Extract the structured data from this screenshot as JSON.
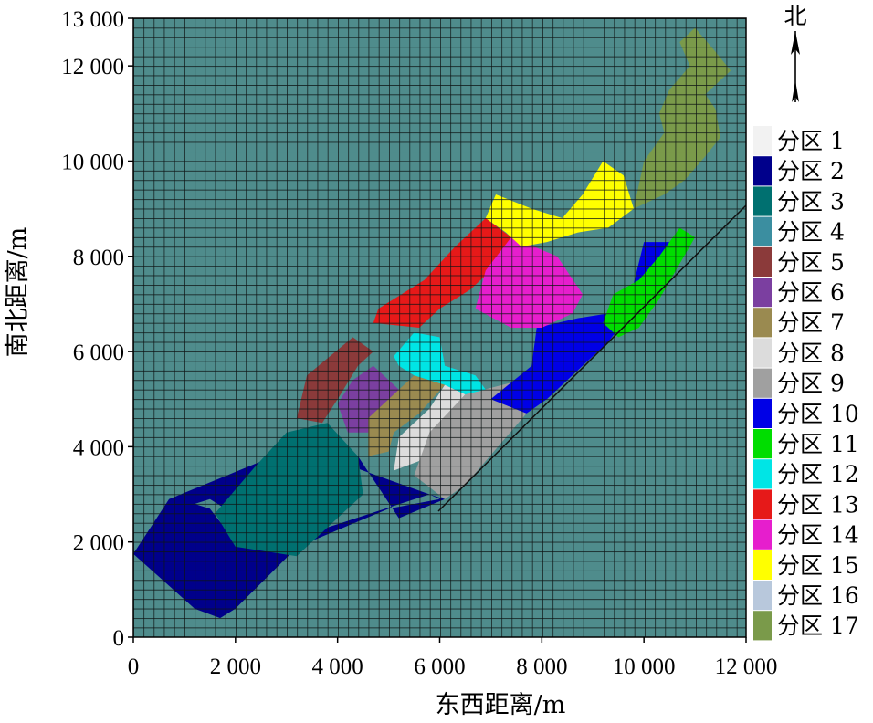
{
  "chart_data": {
    "type": "heatmap",
    "title": "",
    "xlabel": "东西距离/m",
    "ylabel": "南北距离/m",
    "xlim": [
      0,
      12000
    ],
    "ylim": [
      0,
      13000
    ],
    "x_ticks": [
      0,
      2000,
      4000,
      6000,
      8000,
      10000,
      12000
    ],
    "x_tick_labels": [
      "0",
      "2 000",
      "4 000",
      "6 000",
      "8 000",
      "10 000",
      "12 000"
    ],
    "y_ticks": [
      0,
      2000,
      4000,
      6000,
      8000,
      10000,
      12000,
      13000
    ],
    "y_tick_labels": [
      "0",
      "2 000",
      "4 000",
      "6 000",
      "8 000",
      "10 000",
      "12 000",
      "13 000"
    ],
    "north_label": "北",
    "background_color": "#4f8c8c",
    "grid": true,
    "legend_position": "right",
    "zones": [
      {
        "name": "分区 1",
        "color": "#f2f2f2",
        "polygon": []
      },
      {
        "name": "分区 2",
        "color": "#00008b",
        "polygon": [
          [
            0,
            1750
          ],
          [
            700,
            2900
          ],
          [
            3200,
            4000
          ],
          [
            5800,
            3000
          ],
          [
            6100,
            2900
          ],
          [
            5200,
            2500
          ],
          [
            4400,
            3800
          ],
          [
            3100,
            3700
          ],
          [
            2400,
            2300
          ],
          [
            1500,
            2900
          ],
          [
            1200,
            2800
          ],
          [
            1500,
            2700
          ],
          [
            2000,
            2000
          ],
          [
            3000,
            1800
          ],
          [
            5000,
            2700
          ],
          [
            6000,
            2900
          ],
          [
            5800,
            3000
          ],
          [
            3500,
            2200
          ],
          [
            2000,
            600
          ],
          [
            1700,
            400
          ],
          [
            1200,
            600
          ]
        ]
      },
      {
        "name": "分区 3",
        "color": "#007070",
        "polygon": [
          [
            1600,
            2600
          ],
          [
            2000,
            1900
          ],
          [
            3200,
            1700
          ],
          [
            4500,
            3000
          ],
          [
            4400,
            3800
          ],
          [
            3800,
            4500
          ],
          [
            3000,
            4300
          ],
          [
            2400,
            3600
          ]
        ]
      },
      {
        "name": "分区 4",
        "color": "#3b8ea0",
        "polygon": []
      },
      {
        "name": "分区 5",
        "color": "#8b3a3a",
        "polygon": [
          [
            3200,
            4600
          ],
          [
            3400,
            5500
          ],
          [
            4300,
            6300
          ],
          [
            4700,
            6000
          ],
          [
            4400,
            5700
          ],
          [
            4000,
            5000
          ],
          [
            3700,
            4500
          ]
        ]
      },
      {
        "name": "分区 6",
        "color": "#7b3fa0",
        "polygon": [
          [
            4200,
            4300
          ],
          [
            4000,
            4900
          ],
          [
            4300,
            5400
          ],
          [
            4700,
            5700
          ],
          [
            5200,
            5200
          ],
          [
            5000,
            4600
          ],
          [
            4600,
            4300
          ]
        ]
      },
      {
        "name": "分区 7",
        "color": "#9a8a50",
        "polygon": [
          [
            4600,
            3800
          ],
          [
            4600,
            4600
          ],
          [
            5000,
            5000
          ],
          [
            5500,
            5500
          ],
          [
            6100,
            5300
          ],
          [
            5600,
            4700
          ],
          [
            5100,
            4300
          ],
          [
            5000,
            3900
          ]
        ]
      },
      {
        "name": "分区 8",
        "color": "#dcdcdc",
        "polygon": [
          [
            5100,
            3500
          ],
          [
            5200,
            4200
          ],
          [
            5800,
            4800
          ],
          [
            6100,
            5300
          ],
          [
            6500,
            5100
          ],
          [
            6000,
            4400
          ],
          [
            5600,
            3700
          ]
        ]
      },
      {
        "name": "分区 9",
        "color": "#a0a0a0",
        "polygon": [
          [
            5500,
            3400
          ],
          [
            5800,
            4300
          ],
          [
            6500,
            5100
          ],
          [
            7600,
            5400
          ],
          [
            8100,
            5000
          ],
          [
            7700,
            4700
          ],
          [
            6500,
            3200
          ],
          [
            6100,
            2900
          ]
        ]
      },
      {
        "name": "分区 10",
        "color": "#0000e6",
        "polygon": [
          [
            7000,
            5000
          ],
          [
            7800,
            5700
          ],
          [
            7900,
            6500
          ],
          [
            8700,
            6700
          ],
          [
            9300,
            6800
          ],
          [
            9700,
            7000
          ],
          [
            10000,
            8300
          ],
          [
            10500,
            8300
          ],
          [
            10100,
            7600
          ],
          [
            9800,
            6900
          ],
          [
            9300,
            6200
          ],
          [
            8100,
            5000
          ],
          [
            7700,
            4700
          ]
        ]
      },
      {
        "name": "分区 11",
        "color": "#00dd00",
        "polygon": [
          [
            9200,
            6600
          ],
          [
            9400,
            7200
          ],
          [
            9900,
            7500
          ],
          [
            10300,
            8000
          ],
          [
            10700,
            8600
          ],
          [
            11000,
            8400
          ],
          [
            10300,
            7100
          ],
          [
            9900,
            6500
          ],
          [
            9500,
            6300
          ]
        ]
      },
      {
        "name": "分区 12",
        "color": "#00e5e5",
        "polygon": [
          [
            5100,
            5900
          ],
          [
            5500,
            6400
          ],
          [
            6000,
            6300
          ],
          [
            6100,
            5700
          ],
          [
            6700,
            5500
          ],
          [
            6900,
            5200
          ],
          [
            6500,
            5100
          ],
          [
            6100,
            5300
          ],
          [
            5500,
            5500
          ],
          [
            5200,
            5700
          ]
        ]
      },
      {
        "name": "分区 13",
        "color": "#e61919",
        "polygon": [
          [
            4700,
            6600
          ],
          [
            4800,
            6900
          ],
          [
            5700,
            7500
          ],
          [
            6300,
            8200
          ],
          [
            6900,
            8800
          ],
          [
            7400,
            8400
          ],
          [
            7200,
            7900
          ],
          [
            6600,
            7300
          ],
          [
            6000,
            6900
          ],
          [
            5600,
            6500
          ]
        ]
      },
      {
        "name": "分区 14",
        "color": "#e61ecd",
        "polygon": [
          [
            6700,
            6900
          ],
          [
            6900,
            7700
          ],
          [
            7400,
            8400
          ],
          [
            8300,
            8000
          ],
          [
            8800,
            7200
          ],
          [
            8600,
            6800
          ],
          [
            8000,
            6500
          ],
          [
            7400,
            6500
          ]
        ]
      },
      {
        "name": "分区 15",
        "color": "#ffff00",
        "polygon": [
          [
            6900,
            8800
          ],
          [
            7100,
            9300
          ],
          [
            7800,
            9000
          ],
          [
            8400,
            8800
          ],
          [
            8800,
            9300
          ],
          [
            9200,
            10000
          ],
          [
            9600,
            9700
          ],
          [
            9800,
            9000
          ],
          [
            9300,
            8600
          ],
          [
            8700,
            8500
          ],
          [
            8100,
            8300
          ],
          [
            7600,
            8200
          ],
          [
            7300,
            8500
          ]
        ]
      },
      {
        "name": "分区 16",
        "color": "#b8c8dc",
        "polygon": []
      },
      {
        "name": "分区 17",
        "color": "#7a9a4a",
        "polygon": [
          [
            9800,
            9000
          ],
          [
            10000,
            10000
          ],
          [
            10400,
            10600
          ],
          [
            10300,
            11000
          ],
          [
            10500,
            11500
          ],
          [
            10900,
            12000
          ],
          [
            10700,
            12500
          ],
          [
            11000,
            12800
          ],
          [
            11400,
            12300
          ],
          [
            11700,
            11900
          ],
          [
            11200,
            11400
          ],
          [
            11400,
            11100
          ],
          [
            11500,
            10500
          ],
          [
            11200,
            10100
          ],
          [
            10800,
            9600
          ],
          [
            10400,
            9300
          ]
        ]
      }
    ]
  }
}
